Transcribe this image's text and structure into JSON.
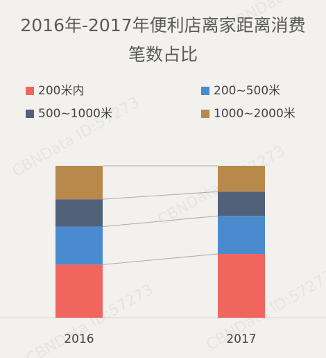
{
  "chart_data": {
    "type": "stacked_bar",
    "title": "2016年-2017年便利店离家距离消费笔数占比",
    "watermark": "CBNData ID:57273",
    "categories": [
      "2016",
      "2017"
    ],
    "ylim": [
      0,
      100
    ],
    "series": [
      {
        "name": "200米内",
        "color": "#f0665f",
        "values": [
          35,
          42
        ]
      },
      {
        "name": "200~500米",
        "color": "#4a8bd0",
        "values": [
          25,
          25
        ]
      },
      {
        "name": "500~1000米",
        "color": "#51617a",
        "values": [
          18,
          16
        ]
      },
      {
        "name": "1000~2000米",
        "color": "#b8894b",
        "values": [
          22,
          17
        ]
      }
    ]
  }
}
